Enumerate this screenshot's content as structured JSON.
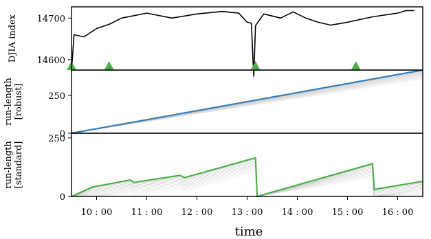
{
  "chart_data": {
    "type": "line",
    "xlabel": "time",
    "x_ticks": [
      "10 : 00",
      "11 : 00",
      "12 : 00",
      "13 : 00",
      "14 : 00",
      "15 : 00",
      "16 : 00"
    ],
    "xlim": [
      "09:30",
      "16:30"
    ],
    "panels": [
      {
        "ylabel": "DJIA index",
        "ylim": [
          14575,
          14727
        ],
        "yticks": [
          14600,
          14700
        ],
        "series": [
          {
            "color": "#000000",
            "points": [
              [
                "09:30",
                14572
              ],
              [
                "09:33",
                14660
              ],
              [
                "09:45",
                14655
              ],
              [
                "10:00",
                14675
              ],
              [
                "10:15",
                14685
              ],
              [
                "10:30",
                14700
              ],
              [
                "11:00",
                14712
              ],
              [
                "11:30",
                14700
              ],
              [
                "12:00",
                14710
              ],
              [
                "12:30",
                14716
              ],
              [
                "12:50",
                14712
              ],
              [
                "13:00",
                14690
              ],
              [
                "13:05",
                14688
              ],
              [
                "13:08",
                14560
              ],
              [
                "13:10",
                14682
              ],
              [
                "13:20",
                14710
              ],
              [
                "13:40",
                14700
              ],
              [
                "13:55",
                14715
              ],
              [
                "14:10",
                14700
              ],
              [
                "14:25",
                14690
              ],
              [
                "14:40",
                14683
              ],
              [
                "15:00",
                14690
              ],
              [
                "15:30",
                14703
              ],
              [
                "16:00",
                14712
              ],
              [
                "16:10",
                14718
              ],
              [
                "16:20",
                14718
              ]
            ]
          }
        ],
        "change_markers": [
          "09:30",
          "10:15",
          "13:10",
          "15:10"
        ],
        "marker_color": "#4daf4a"
      },
      {
        "ylabel": "run-length\n[robust]",
        "ylim": [
          0,
          420
        ],
        "yticks": [
          0,
          250
        ],
        "series": [
          {
            "color": "#377eb8",
            "points": [
              [
                "09:30",
                0
              ],
              [
                "16:30",
                420
              ]
            ]
          }
        ]
      },
      {
        "ylabel": "run-length\n[standard]",
        "ylim": [
          0,
          270
        ],
        "yticks": [
          0,
          250
        ],
        "series": [
          {
            "color": "#4daf4a",
            "points": [
              [
                "09:30",
                0
              ],
              [
                "09:55",
                40
              ],
              [
                "10:40",
                70
              ],
              [
                "10:45",
                60
              ],
              [
                "11:40",
                90
              ],
              [
                "11:45",
                80
              ],
              [
                "13:10",
                165
              ],
              [
                "13:12",
                0
              ],
              [
                "15:30",
                140
              ],
              [
                "15:32",
                30
              ],
              [
                "16:30",
                65
              ]
            ]
          }
        ]
      }
    ]
  }
}
